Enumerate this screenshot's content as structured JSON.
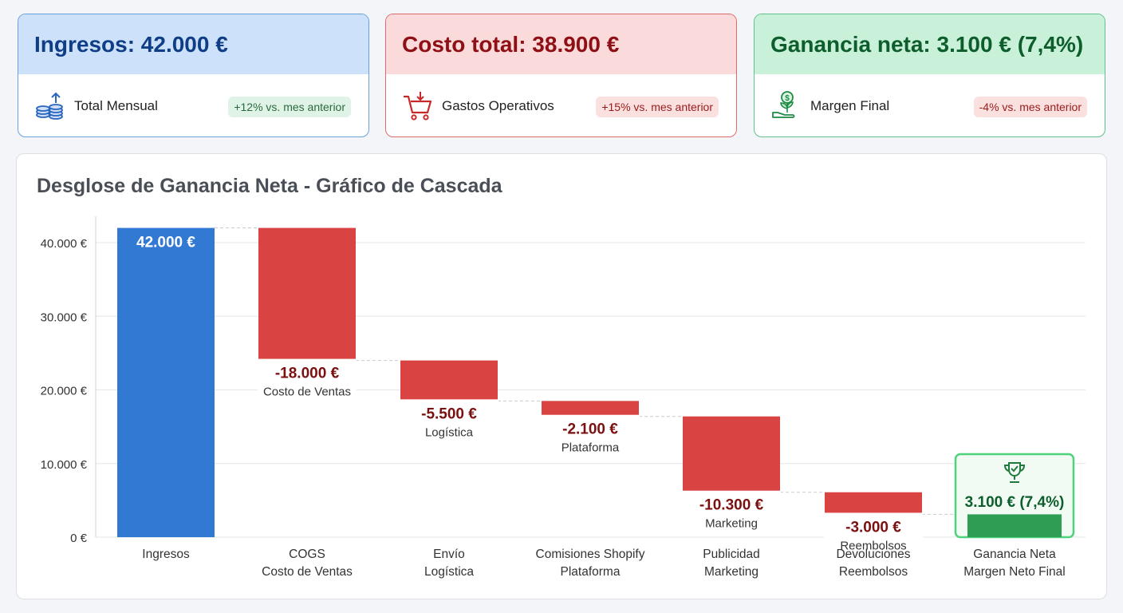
{
  "cards": {
    "revenue": {
      "title": "Ingresos: 42.000 €",
      "subtitle": "Total Mensual",
      "badge": "+12% vs. mes anterior",
      "icon": "coins-icon"
    },
    "cost": {
      "title": "Costo total: 38.900 €",
      "subtitle": "Gastos Operativos",
      "badge": "+15% vs. mes anterior",
      "icon": "shopping-cart-icon"
    },
    "profit": {
      "title": "Ganancia neta: 3.100 € (7,4%)",
      "subtitle": "Margen Final",
      "badge": "-4% vs. mes anterior",
      "icon": "money-plant-icon"
    }
  },
  "colors": {
    "positive": "#3279d4",
    "negative": "#d94442",
    "total": "#2e9e55",
    "negative_label": "#7a1010",
    "total_label": "#0d5e2c"
  },
  "chart_data": {
    "type": "bar",
    "subtype": "waterfall",
    "title": "Desglose de Ganancia Neta - Gráfico de Cascada",
    "ylim": [
      0,
      42000
    ],
    "yticks": [
      0,
      10000,
      20000,
      30000,
      40000
    ],
    "ytick_labels": [
      "0 €",
      "10.000 €",
      "20.000 €",
      "30.000 €",
      "40.000 €"
    ],
    "grid": true,
    "steps": [
      {
        "name": "Ingresos",
        "sub": "",
        "value": 42000,
        "kind": "start",
        "label": "42.000 €",
        "inner_label": ""
      },
      {
        "name": "COGS",
        "sub": "Costo de Ventas",
        "value": -18000,
        "kind": "delta",
        "label": "-18.000 €",
        "inner_label": "Costo de Ventas"
      },
      {
        "name": "Envío",
        "sub": "Logística",
        "value": -5500,
        "kind": "delta",
        "label": "-5.500 €",
        "inner_label": "Logística"
      },
      {
        "name": "Comisiones Shopify",
        "sub": "Plataforma",
        "value": -2100,
        "kind": "delta",
        "label": "-2.100 €",
        "inner_label": "Plataforma"
      },
      {
        "name": "Publicidad",
        "sub": "Marketing",
        "value": -10300,
        "kind": "delta",
        "label": "-10.300 €",
        "inner_label": "Marketing"
      },
      {
        "name": "Devoluciones",
        "sub": "Reembolsos",
        "value": -3000,
        "kind": "delta",
        "label": "-3.000 €",
        "inner_label": "Reembolsos"
      },
      {
        "name": "Ganancia Neta",
        "sub": "Margen Neto Final",
        "value": 3100,
        "kind": "total",
        "label": "3.100 € (7,4%)",
        "inner_label": "",
        "icon": "trophy-icon"
      }
    ]
  }
}
